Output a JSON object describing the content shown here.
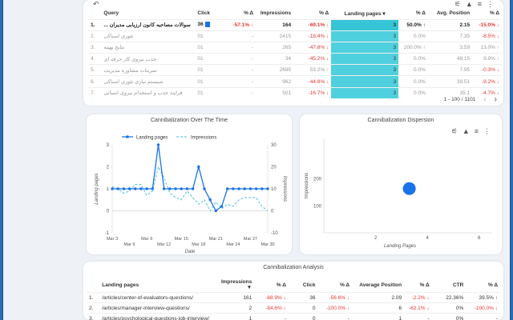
{
  "query_table": {
    "toolbar_icons": [
      "undo-icon",
      "filter-icon",
      "alert-icon",
      "sort-icon",
      "more-icon"
    ],
    "headers": {
      "query": "Query",
      "click": "Click",
      "click_delta": "% Δ",
      "impressions": "Impressions",
      "impr_delta": "% Δ",
      "landing_pages": "Landing pages",
      "lp_delta": "% Δ",
      "avg_position": "Avg. Position",
      "pos_delta": "% Δ"
    },
    "rows": [
      {
        "idx": "1.",
        "query": "سوالات مصاحبه کانون ارزیابی مدیران ...",
        "click": "36",
        "click_delta": "-57.1% ↓",
        "impressions": "164",
        "impr_delta": "-69.1% ↓",
        "landing_pages": "3",
        "lp_delta": "50.0% ↑",
        "avg_position": "2.15",
        "pos_delta": "-15.0% ↓"
      },
      {
        "idx": "2.",
        "query": "تئوری اسناکی",
        "click": "01",
        "click_delta": "-",
        "impressions": "2415",
        "impr_delta": "-18.4% ↓",
        "landing_pages": "3",
        "lp_delta": "0.0%",
        "avg_position": "7.35",
        "pos_delta": "-8.5% ↓"
      },
      {
        "idx": "3.",
        "query": "نتایج بهینه",
        "click": "01",
        "click_delta": "-",
        "impressions": "265",
        "impr_delta": "-47.8% ↓",
        "landing_pages": "3",
        "lp_delta": "200.0% ↑",
        "avg_position": "3.59",
        "pos_delta": "13.0% ↑"
      },
      {
        "idx": "4.",
        "query": "جذب نیروی کار حرفه ای",
        "click": "01",
        "click_delta": "-",
        "impressions": "34",
        "impr_delta": "-45.2% ↓",
        "landing_pages": "3",
        "lp_delta": "0.0%",
        "avg_position": "48.15",
        "pos_delta": "9.9% ↑"
      },
      {
        "idx": "5.",
        "query": "تمرینات مشاوره مدیریت",
        "click": "01",
        "click_delta": "-",
        "impressions": "2695",
        "impr_delta": "53.2% ↑",
        "landing_pages": "3",
        "lp_delta": "0.0%",
        "avg_position": "7.95",
        "pos_delta": "-0.3% ↓"
      },
      {
        "idx": "6.",
        "query": "سیستم نیازی تئوری اسناکی",
        "click": "01",
        "click_delta": "-",
        "impressions": "962",
        "impr_delta": "-44.8% ↓",
        "landing_pages": "3",
        "lp_delta": "0.0%",
        "avg_position": "39.51",
        "pos_delta": "-9.2% ↓"
      },
      {
        "idx": "7.",
        "query": "فرایند جذب و استخدام نیروی انسانی",
        "click": "01",
        "click_delta": "-",
        "impressions": "501",
        "impr_delta": "-16.7% ↓",
        "landing_pages": "3",
        "lp_delta": "0.0%",
        "avg_position": "35.1",
        "pos_delta": "-4.7% ↓"
      }
    ],
    "pagination": {
      "text": "1 - 100 / 1101",
      "prev": "‹",
      "next": "›"
    }
  },
  "line_chart": {
    "title": "Cannibalization Over The Time",
    "legend": [
      "Landing pages",
      "Impressions"
    ],
    "xlabel": "Date",
    "ylabel_left": "Landing pages",
    "ylabel_right": "Impressions",
    "x_ticks_top": [
      "Mar 3",
      "Mar 9",
      "Mar 15",
      "Mar 21",
      "Mar 27"
    ],
    "x_ticks_bottom": [
      "Mar 6",
      "Mar 12",
      "Mar 18",
      "Mar 24",
      "Mar 30"
    ],
    "y_left_ticks": [
      "3",
      "2",
      "1",
      "0",
      "-1"
    ],
    "y_right_ticks": [
      "30",
      "20",
      "10",
      "0",
      "-10"
    ]
  },
  "chart_data": [
    {
      "type": "line",
      "title": "Cannibalization Over The Time",
      "xlabel": "Date",
      "ylabel": "Landing pages",
      "ylim": [
        -1,
        3
      ],
      "y2lim": [
        -10,
        30
      ],
      "x": [
        "Mar 3",
        "Mar 4",
        "Mar 5",
        "Mar 6",
        "Mar 7",
        "Mar 8",
        "Mar 9",
        "Mar 10",
        "Mar 11",
        "Mar 12",
        "Mar 13",
        "Mar 14",
        "Mar 15",
        "Mar 16",
        "Mar 17",
        "Mar 18",
        "Mar 19",
        "Mar 20",
        "Mar 21",
        "Mar 22",
        "Mar 23",
        "Mar 24",
        "Mar 25",
        "Mar 26",
        "Mar 27",
        "Mar 28",
        "Mar 29",
        "Mar 30"
      ],
      "series": [
        {
          "name": "Landing pages",
          "axis": "left",
          "values": [
            1,
            1,
            1,
            1,
            1,
            1,
            1,
            1,
            3,
            1,
            1,
            1,
            1,
            1,
            1,
            2,
            1,
            0.5,
            0,
            0.2,
            1,
            1,
            1,
            1,
            1,
            1,
            1,
            1
          ]
        },
        {
          "name": "Impressions",
          "axis": "right",
          "values": [
            11,
            10,
            8,
            9,
            12,
            12,
            7,
            9,
            20,
            15,
            8,
            6,
            5,
            9,
            6,
            3,
            5,
            0,
            4,
            1,
            3,
            2,
            5,
            6,
            6,
            6,
            2,
            0
          ]
        }
      ]
    },
    {
      "type": "scatter",
      "title": "Cannibalization Dispersion",
      "xlabel": "Landing Pages",
      "ylabel": "Impressions",
      "xlim": [
        0,
        6.5
      ],
      "ylim": [
        0,
        350
      ],
      "x_ticks": [
        2,
        4,
        6
      ],
      "y_ticks": [
        100,
        200
      ],
      "points": [
        {
          "x": 3.3,
          "y": 164
        }
      ]
    }
  ],
  "scatter_chart": {
    "title": "Cannibalization Dispersion",
    "xlabel": "Landing Pages",
    "ylabel": "Impressions",
    "x_ticks": [
      "2",
      "4",
      "6"
    ],
    "y_ticks": [
      "200",
      "100"
    ],
    "toolbar_icons": [
      "filter-icon",
      "alert-icon",
      "sort-icon",
      "more-icon"
    ]
  },
  "analysis_table": {
    "title": "Cannibalization Analysis",
    "headers": {
      "landing_pages": "Landing pages",
      "impressions": "Impressions ▼",
      "impr_delta": "% Δ",
      "click": "Click",
      "click_delta": "% Δ",
      "avg_position": "Average Position",
      "pos_delta": "% Δ",
      "ctr": "CTR",
      "ctr_delta": "% Δ"
    },
    "rows": [
      {
        "idx": "1.",
        "page": "/articles/center-of-evaluators-questions/",
        "impressions": "161",
        "impr_delta": "-68.9% ↓",
        "click": "36",
        "click_delta": "-56.6% ↓",
        "avg_position": "2.09",
        "pos_delta": "-2.2% ↓",
        "ctr": "22.36%",
        "ctr_delta": "39.5% ↑"
      },
      {
        "idx": "2.",
        "page": "/articles/manager-interview-questions/",
        "impressions": "2",
        "impr_delta": "-84.6% ↓",
        "click": "0",
        "click_delta": "-100.0% ↓",
        "avg_position": "6",
        "pos_delta": "-62.1% ↓",
        "ctr": "0%",
        "ctr_delta": "-100.0% ↓"
      },
      {
        "idx": "3.",
        "page": "/articles/psychological-questions-job-interview/",
        "impressions": "1",
        "impr_delta": "-",
        "click": "0",
        "click_delta": "-",
        "avg_position": "1",
        "pos_delta": "-",
        "ctr": "0%",
        "ctr_delta": "-"
      }
    ]
  },
  "colors": {
    "accent": "#1a73e8",
    "landing_highlight": "#4fd0de",
    "negative": "#e53935",
    "line": "#1a73e8",
    "frame": "#1c4f86"
  }
}
